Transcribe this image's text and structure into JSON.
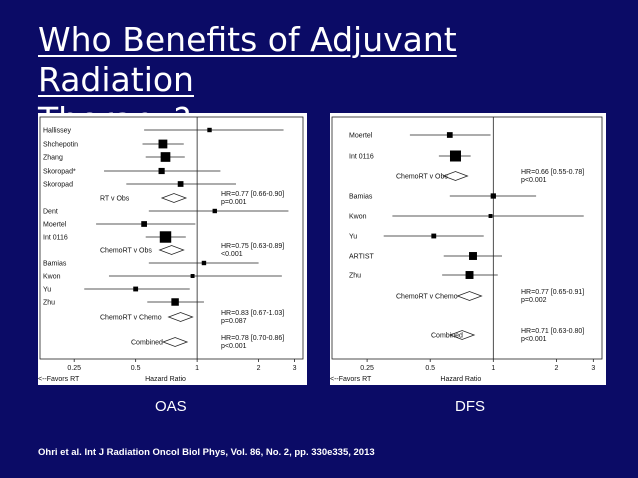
{
  "slide": {
    "title_line1": "Who Benefits of Adjuvant Radiation",
    "title_line2": "Therapy?",
    "oas_label": "OAS",
    "dfs_label": "DFS",
    "citation": "Ohri et al. Int J Radiation Oncol Biol Phys, Vol. 86, No. 2, pp. 330e335, 2013"
  },
  "chart_data": [
    {
      "type": "forest",
      "name": "OAS",
      "xscale": "log",
      "xlim": [
        0.17,
        3.3
      ],
      "ticks": [
        "0.25",
        "0.5",
        "1",
        "2",
        "3"
      ],
      "tick_values": [
        0.25,
        0.5,
        1,
        2,
        3
      ],
      "xlabel": "Hazard Ratio",
      "favors_label": "<--Favors RT",
      "studies": [
        {
          "label": "Hallissey",
          "hr": 1.15,
          "lo": 0.55,
          "hi": 2.65,
          "size": 1
        },
        {
          "label": "Shchepotin",
          "hr": 0.68,
          "lo": 0.54,
          "hi": 0.86,
          "size": 2
        },
        {
          "label": "Zhang",
          "hr": 0.7,
          "lo": 0.56,
          "hi": 0.87,
          "size": 2.2
        },
        {
          "label": "Skoropad*",
          "hr": 0.67,
          "lo": 0.35,
          "hi": 1.3,
          "size": 1.4
        },
        {
          "label": "Skoropad",
          "hr": 0.83,
          "lo": 0.45,
          "hi": 1.55,
          "size": 1.3
        },
        {
          "label": "Dent",
          "hr": 1.22,
          "lo": 0.58,
          "hi": 2.8,
          "size": 1
        },
        {
          "label": "Moertel",
          "hr": 0.55,
          "lo": 0.32,
          "hi": 0.98,
          "size": 1.3
        },
        {
          "label": "Int 0116",
          "hr": 0.7,
          "lo": 0.56,
          "hi": 0.88,
          "size": 2.6
        },
        {
          "label": "Bamias",
          "hr": 1.08,
          "lo": 0.58,
          "hi": 2.0,
          "size": 1
        },
        {
          "label": "Kwon",
          "hr": 0.95,
          "lo": 0.37,
          "hi": 2.6,
          "size": 0.9
        },
        {
          "label": "Yu",
          "hr": 0.5,
          "lo": 0.28,
          "hi": 0.92,
          "size": 1.1
        },
        {
          "label": "Zhu",
          "hr": 0.78,
          "lo": 0.57,
          "hi": 1.08,
          "size": 1.7
        }
      ],
      "summaries": [
        {
          "label": "RT v Obs",
          "hr": 0.77,
          "lo": 0.66,
          "hi": 0.9,
          "text1": "HR=0.77 [0.66-0.90]",
          "text2": "p=0.001"
        },
        {
          "label": "ChemoRT v Obs",
          "hr": 0.75,
          "lo": 0.63,
          "hi": 0.89,
          "text1": "HR=0.75 [0.63-0.89]",
          "text2": "<0.001"
        },
        {
          "label": "ChemoRT v Chemo",
          "hr": 0.83,
          "lo": 0.67,
          "hi": 1.03,
          "text1": "HR=0.83 [0.67-1.03]",
          "text2": "p=0.087"
        },
        {
          "label": "Combined",
          "hr": 0.78,
          "lo": 0.7,
          "hi": 0.86,
          "text1": "HR=0.78 [0.70-0.86]",
          "text2": "p<0.001"
        }
      ]
    },
    {
      "type": "forest",
      "name": "DFS",
      "xscale": "log",
      "xlim": [
        0.17,
        3.3
      ],
      "ticks": [
        "0.25",
        "0.5",
        "1",
        "2",
        "3"
      ],
      "tick_values": [
        0.25,
        0.5,
        1,
        2,
        3
      ],
      "xlabel": "Hazard Ratio",
      "favors_label": "<--Favors RT",
      "studies": [
        {
          "label": "Moertel",
          "hr": 0.62,
          "lo": 0.4,
          "hi": 0.97,
          "size": 1.3
        },
        {
          "label": "Int 0116",
          "hr": 0.66,
          "lo": 0.55,
          "hi": 0.78,
          "size": 2.5
        },
        {
          "label": "Bamias",
          "hr": 1.0,
          "lo": 0.62,
          "hi": 1.6,
          "size": 1.2
        },
        {
          "label": "Kwon",
          "hr": 0.97,
          "lo": 0.33,
          "hi": 2.7,
          "size": 0.9
        },
        {
          "label": "Yu",
          "hr": 0.52,
          "lo": 0.3,
          "hi": 0.9,
          "size": 1.1
        },
        {
          "label": "ARTIST",
          "hr": 0.8,
          "lo": 0.58,
          "hi": 1.1,
          "size": 1.8
        },
        {
          "label": "Zhu",
          "hr": 0.77,
          "lo": 0.57,
          "hi": 1.05,
          "size": 1.8
        }
      ],
      "summaries": [
        {
          "label": "ChemoRT v Obs",
          "hr": 0.66,
          "lo": 0.55,
          "hi": 0.78,
          "text1": "HR=0.66 [0.55-0.78]",
          "text2": "p<0.001"
        },
        {
          "label": "ChemoRT v Chemo",
          "hr": 0.77,
          "lo": 0.65,
          "hi": 0.91,
          "text1": "HR=0.77 [0.65-0.91]",
          "text2": "p=0.002"
        },
        {
          "label": "Combined",
          "hr": 0.71,
          "lo": 0.63,
          "hi": 0.8,
          "text1": "HR=0.71 [0.63-0.80]",
          "text2": "p<0.001"
        }
      ]
    }
  ]
}
